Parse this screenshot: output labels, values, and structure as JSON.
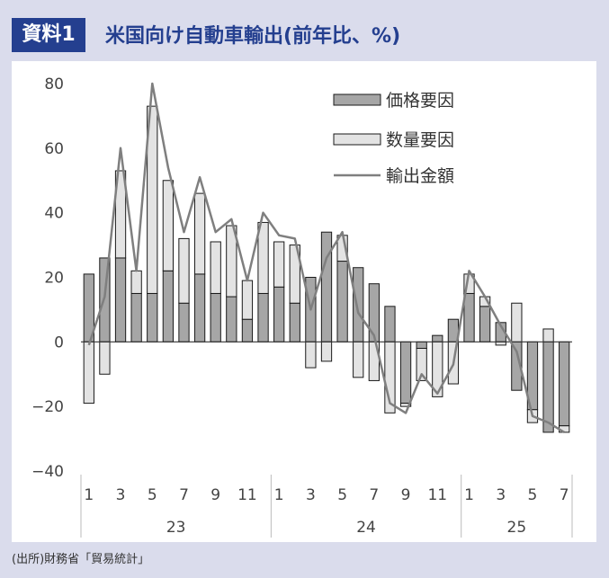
{
  "header": {
    "badge": "資料1",
    "title": "米国向け自動車輸出(前年比、%)"
  },
  "source": "(出所)財務省「貿易統計」",
  "colors": {
    "background": "#dadcec",
    "badge": "#243f8f",
    "price_bar": "#a6a6a6",
    "quantity_bar": "#e3e3e3",
    "line": "#7f7f7f"
  },
  "chart_data": {
    "type": "bar",
    "subtype": "stacked bar with line",
    "categories": [
      "1",
      "2",
      "3",
      "4",
      "5",
      "6",
      "7",
      "8",
      "9",
      "10",
      "11",
      "12",
      "1",
      "2",
      "3",
      "4",
      "5",
      "6",
      "7",
      "8",
      "9",
      "10",
      "11",
      "12",
      "1",
      "2",
      "3",
      "4",
      "5",
      "6",
      "7"
    ],
    "x_tick_labels": [
      "1",
      "3",
      "5",
      "7",
      "9",
      "11",
      "1",
      "3",
      "5",
      "7",
      "9",
      "11",
      "1",
      "3",
      "5",
      "7"
    ],
    "year_labels": [
      "23",
      "24",
      "25"
    ],
    "ylim": [
      -40,
      80
    ],
    "yticks": [
      "80",
      "60",
      "40",
      "20",
      "0",
      "−20",
      "−40"
    ],
    "legend_position": "top-right",
    "grid": false,
    "series": [
      {
        "name": "価格要因",
        "type": "bar",
        "values": [
          21,
          26,
          26,
          15,
          15,
          22,
          12,
          21,
          15,
          14,
          7,
          15,
          17,
          12,
          20,
          34,
          25,
          23,
          18,
          11,
          -19,
          -2,
          2,
          7,
          15,
          11,
          6,
          -15,
          -21,
          -28,
          -26
        ]
      },
      {
        "name": "数量要因",
        "type": "bar",
        "values": [
          -19,
          -10,
          27,
          7,
          58,
          28,
          20,
          25,
          16,
          22,
          12,
          22,
          14,
          18,
          -8,
          -6,
          8,
          -11,
          -12,
          -22,
          -1,
          -10,
          -17,
          -13,
          6,
          3,
          -1,
          12,
          -4,
          4,
          -2
        ]
      },
      {
        "name": "輸出金額",
        "type": "line",
        "values": [
          -1,
          14,
          60,
          22,
          80,
          54,
          34,
          51,
          34,
          38,
          19,
          40,
          33,
          32,
          10,
          26,
          34,
          9,
          2,
          -19,
          -22,
          -10,
          -16,
          -7,
          22,
          14,
          5,
          -3,
          -23,
          -25,
          -28
        ]
      }
    ]
  }
}
